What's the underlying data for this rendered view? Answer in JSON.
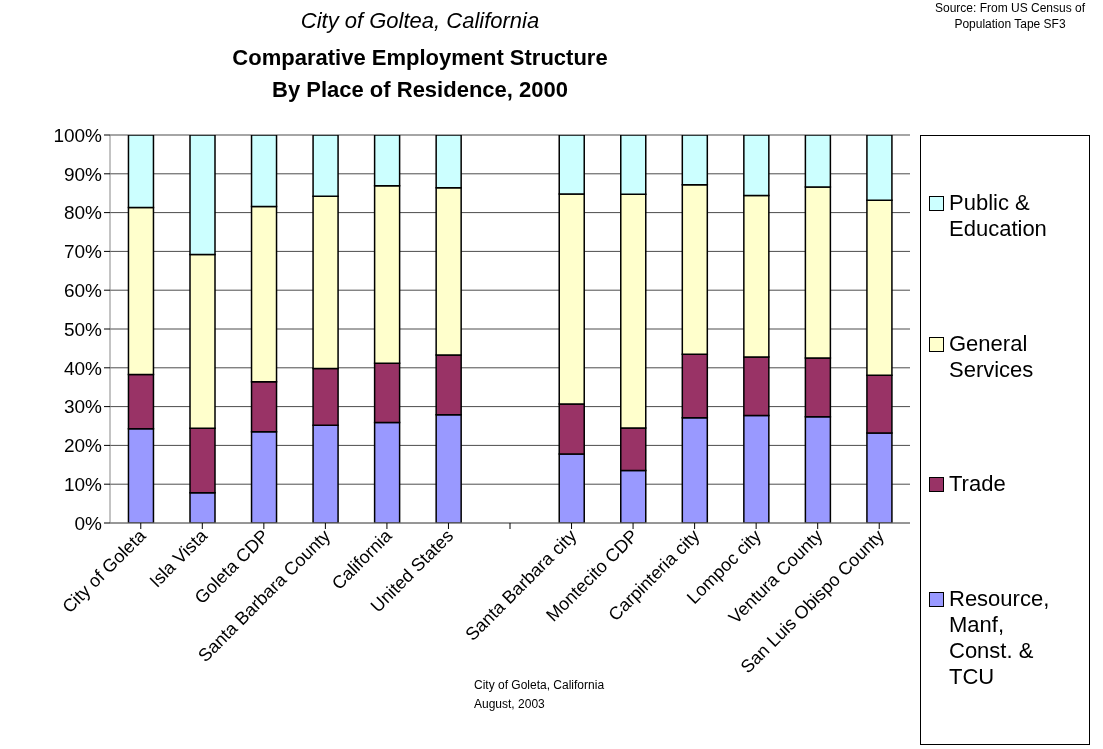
{
  "chart_data": {
    "type": "bar",
    "stacked": true,
    "subtitle": "City of Goltea, California",
    "title": "Comparative Employment Structure\nBy Place of Residence, 2000",
    "categories": [
      "City of Goleta",
      "Isla Vista",
      "Goleta CDP",
      "Santa Barbara County",
      "California",
      "United States",
      null,
      "Santa Barbara city",
      "Montecito CDP",
      "Carpinteria city",
      "Lompoc city",
      "Ventura County",
      "San Luis Obispo County"
    ],
    "series": [
      {
        "name": "Resource, Manf, Const. & TCU",
        "color": "#9999ff",
        "values": [
          24.3,
          7.8,
          23.5,
          25.2,
          25.9,
          27.9,
          null,
          17.8,
          13.5,
          27.1,
          27.7,
          27.4,
          23.2
        ]
      },
      {
        "name": "Trade",
        "color": "#993366",
        "values": [
          14,
          16.6,
          12.9,
          14.6,
          15.3,
          15.4,
          null,
          12.9,
          11,
          16.4,
          15.1,
          15.1,
          14.9
        ]
      },
      {
        "name": "General Services",
        "color": "#ffffcc",
        "values": [
          43,
          44.8,
          45.2,
          44.4,
          45.7,
          43.1,
          null,
          54.1,
          60.2,
          43.7,
          41.6,
          44.1,
          45.1
        ]
      },
      {
        "name": "Public & Education",
        "color": "#ccffff",
        "values": [
          18.7,
          30.8,
          18.4,
          15.8,
          13.1,
          13.6,
          null,
          15.2,
          15.3,
          12.8,
          15.6,
          13.4,
          16.8
        ]
      }
    ],
    "ylim": [
      0,
      100
    ],
    "yticks": [
      {
        "value": 0,
        "label": "0%"
      },
      {
        "value": 10,
        "label": "10%"
      },
      {
        "value": 20,
        "label": "20%"
      },
      {
        "value": 30,
        "label": "30%"
      },
      {
        "value": 40,
        "label": "40%"
      },
      {
        "value": 50,
        "label": "50%"
      },
      {
        "value": 60,
        "label": "60%"
      },
      {
        "value": 70,
        "label": "70%"
      },
      {
        "value": 80,
        "label": "80%"
      },
      {
        "value": 90,
        "label": "90%"
      },
      {
        "value": 100,
        "label": "100%"
      }
    ],
    "grid": "y",
    "legend": "right",
    "annotations": [
      "Source: From US Census of Population Tape SF3",
      "City of Goleta, California\nAugust, 2003"
    ]
  }
}
